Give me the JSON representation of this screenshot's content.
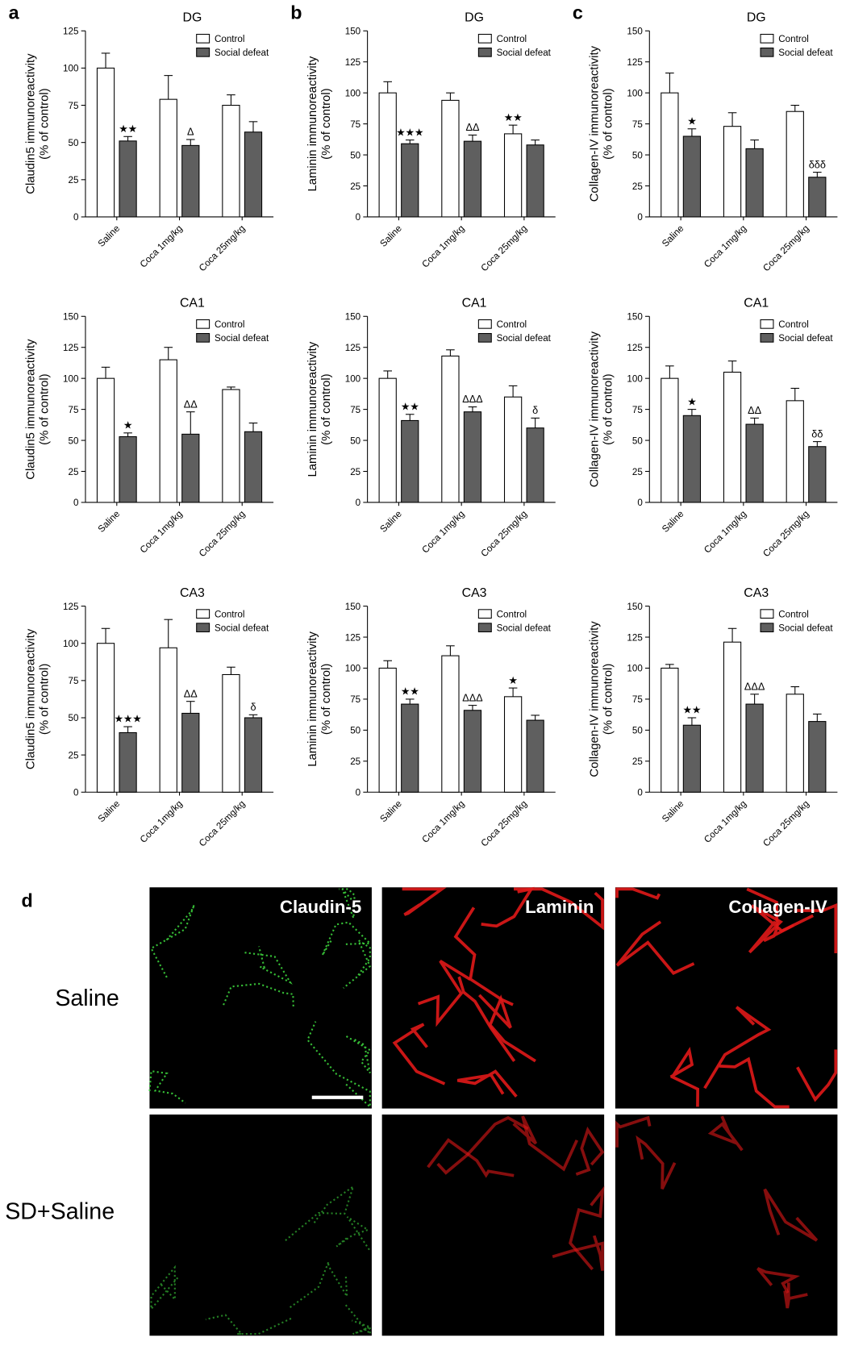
{
  "chart_data": [
    {
      "type": "bar",
      "panel": "a",
      "title": "DG",
      "ylabel": [
        "Claudin5 immunoreactivity",
        "(% of control)"
      ],
      "categories": [
        "Saline",
        "Coca 1mg/kg",
        "Coca 25mg/kg"
      ],
      "ylim": [
        0,
        125
      ],
      "yticks": [
        0,
        25,
        50,
        75,
        100,
        125
      ],
      "series": [
        {
          "name": "Control",
          "color": "#ffffff",
          "values": [
            100,
            79,
            75
          ],
          "errors": [
            10,
            16,
            7
          ],
          "labels": [
            null,
            null,
            null
          ]
        },
        {
          "name": "Social defeat",
          "color": "#5f5f5f",
          "values": [
            51,
            48,
            57
          ],
          "errors": [
            3,
            4,
            7
          ],
          "labels": [
            "★★",
            "Δ",
            null
          ]
        }
      ]
    },
    {
      "type": "bar",
      "panel": "b",
      "title": "DG",
      "ylabel": [
        "Laminin immunoreactivity",
        "(% of control)"
      ],
      "categories": [
        "Saline",
        "Coca 1mg/kg",
        "Coca 25mg/kg"
      ],
      "ylim": [
        0,
        150
      ],
      "yticks": [
        0,
        25,
        50,
        75,
        100,
        125,
        150
      ],
      "series": [
        {
          "name": "Control",
          "color": "#ffffff",
          "values": [
            100,
            94,
            67
          ],
          "errors": [
            9,
            6,
            7
          ],
          "labels": [
            null,
            null,
            "★★"
          ]
        },
        {
          "name": "Social defeat",
          "color": "#5f5f5f",
          "values": [
            59,
            61,
            58
          ],
          "errors": [
            3,
            5,
            4
          ],
          "labels": [
            "★★★",
            "ΔΔ",
            null
          ]
        }
      ]
    },
    {
      "type": "bar",
      "panel": "c",
      "title": "DG",
      "ylabel": [
        "Collagen-IV immunoreactivity",
        "(% of control)"
      ],
      "categories": [
        "Saline",
        "Coca 1mg/kg",
        "Coca 25mg/kg"
      ],
      "ylim": [
        0,
        150
      ],
      "yticks": [
        0,
        25,
        50,
        75,
        100,
        125,
        150
      ],
      "series": [
        {
          "name": "Control",
          "color": "#ffffff",
          "values": [
            100,
            73,
            85
          ],
          "errors": [
            16,
            11,
            5
          ],
          "labels": [
            null,
            null,
            null
          ]
        },
        {
          "name": "Social defeat",
          "color": "#5f5f5f",
          "values": [
            65,
            55,
            32
          ],
          "errors": [
            6,
            7,
            4
          ],
          "labels": [
            "★",
            null,
            "δδδ"
          ]
        }
      ]
    },
    {
      "type": "bar",
      "title": "CA1",
      "ylabel": [
        "Claudin5 immunoreactivity",
        "(% of control)"
      ],
      "categories": [
        "Saline",
        "Coca 1mg/kg",
        "Coca 25mg/kg"
      ],
      "ylim": [
        0,
        150
      ],
      "yticks": [
        0,
        25,
        50,
        75,
        100,
        125,
        150
      ],
      "series": [
        {
          "name": "Control",
          "color": "#ffffff",
          "values": [
            100,
            115,
            91
          ],
          "errors": [
            9,
            10,
            2
          ],
          "labels": [
            null,
            null,
            null
          ]
        },
        {
          "name": "Social defeat",
          "color": "#5f5f5f",
          "values": [
            53,
            55,
            57
          ],
          "errors": [
            3,
            18,
            7
          ],
          "labels": [
            "★",
            "ΔΔ",
            null
          ]
        }
      ]
    },
    {
      "type": "bar",
      "title": "CA1",
      "ylabel": [
        "Laminin immunoreactivity",
        "(% of control)"
      ],
      "categories": [
        "Saline",
        "Coca 1mg/kg",
        "Coca 25mg/kg"
      ],
      "ylim": [
        0,
        150
      ],
      "yticks": [
        0,
        25,
        50,
        75,
        100,
        125,
        150
      ],
      "series": [
        {
          "name": "Control",
          "color": "#ffffff",
          "values": [
            100,
            118,
            85
          ],
          "errors": [
            6,
            5,
            9
          ],
          "labels": [
            null,
            null,
            null
          ]
        },
        {
          "name": "Social defeat",
          "color": "#5f5f5f",
          "values": [
            66,
            73,
            60
          ],
          "errors": [
            5,
            4,
            8
          ],
          "labels": [
            "★★",
            "ΔΔΔ",
            "δ"
          ]
        }
      ]
    },
    {
      "type": "bar",
      "title": "CA1",
      "ylabel": [
        "Collagen-IV immunoreactivity",
        "(% of control)"
      ],
      "categories": [
        "Saline",
        "Coca 1mg/kg",
        "Coca 25mg/kg"
      ],
      "ylim": [
        0,
        150
      ],
      "yticks": [
        0,
        25,
        50,
        75,
        100,
        125,
        150
      ],
      "series": [
        {
          "name": "Control",
          "color": "#ffffff",
          "values": [
            100,
            105,
            82
          ],
          "errors": [
            10,
            9,
            10
          ],
          "labels": [
            null,
            null,
            null
          ]
        },
        {
          "name": "Social defeat",
          "color": "#5f5f5f",
          "values": [
            70,
            63,
            45
          ],
          "errors": [
            5,
            5,
            4
          ],
          "labels": [
            "★",
            "ΔΔ",
            "δδ"
          ]
        }
      ]
    },
    {
      "type": "bar",
      "title": "CA3",
      "ylabel": [
        "Claudin5 immunoreactivity",
        "(% of control)"
      ],
      "categories": [
        "Saline",
        "Coca 1mg/kg",
        "Coca 25mg/kg"
      ],
      "ylim": [
        0,
        125
      ],
      "yticks": [
        0,
        25,
        50,
        75,
        100,
        125
      ],
      "series": [
        {
          "name": "Control",
          "color": "#ffffff",
          "values": [
            100,
            97,
            79
          ],
          "errors": [
            10,
            19,
            5
          ],
          "labels": [
            null,
            null,
            null
          ]
        },
        {
          "name": "Social defeat",
          "color": "#5f5f5f",
          "values": [
            40,
            53,
            50
          ],
          "errors": [
            4,
            8,
            2
          ],
          "labels": [
            "★★★",
            "ΔΔ",
            "δ"
          ]
        }
      ]
    },
    {
      "type": "bar",
      "title": "CA3",
      "ylabel": [
        "Laminin immunoreactivity",
        "(% of control)"
      ],
      "categories": [
        "Saline",
        "Coca 1mg/kg",
        "Coca 25mg/kg"
      ],
      "ylim": [
        0,
        150
      ],
      "yticks": [
        0,
        25,
        50,
        75,
        100,
        125,
        150
      ],
      "series": [
        {
          "name": "Control",
          "color": "#ffffff",
          "values": [
            100,
            110,
            77
          ],
          "errors": [
            6,
            8,
            7
          ],
          "labels": [
            null,
            null,
            "★"
          ]
        },
        {
          "name": "Social defeat",
          "color": "#5f5f5f",
          "values": [
            71,
            66,
            58
          ],
          "errors": [
            4,
            4,
            4
          ],
          "labels": [
            "★★",
            "ΔΔΔ",
            null
          ]
        }
      ]
    },
    {
      "type": "bar",
      "title": "CA3",
      "ylabel": [
        "Collagen-IV immunoreactivity",
        "(% of control)"
      ],
      "categories": [
        "Saline",
        "Coca 1mg/kg",
        "Coca 25mg/kg"
      ],
      "ylim": [
        0,
        150
      ],
      "yticks": [
        0,
        25,
        50,
        75,
        100,
        125,
        150
      ],
      "series": [
        {
          "name": "Control",
          "color": "#ffffff",
          "values": [
            100,
            121,
            79
          ],
          "errors": [
            3,
            11,
            6
          ],
          "labels": [
            null,
            null,
            null
          ]
        },
        {
          "name": "Social defeat",
          "color": "#5f5f5f",
          "values": [
            54,
            71,
            57
          ],
          "errors": [
            6,
            8,
            6
          ],
          "labels": [
            "★★",
            "ΔΔΔ",
            null
          ]
        }
      ]
    }
  ],
  "figure_d": {
    "panel": "d",
    "columns": [
      "Claudin-5",
      "Laminin",
      "Collagen-IV"
    ],
    "rows": [
      "Saline",
      "SD+Saline"
    ]
  }
}
